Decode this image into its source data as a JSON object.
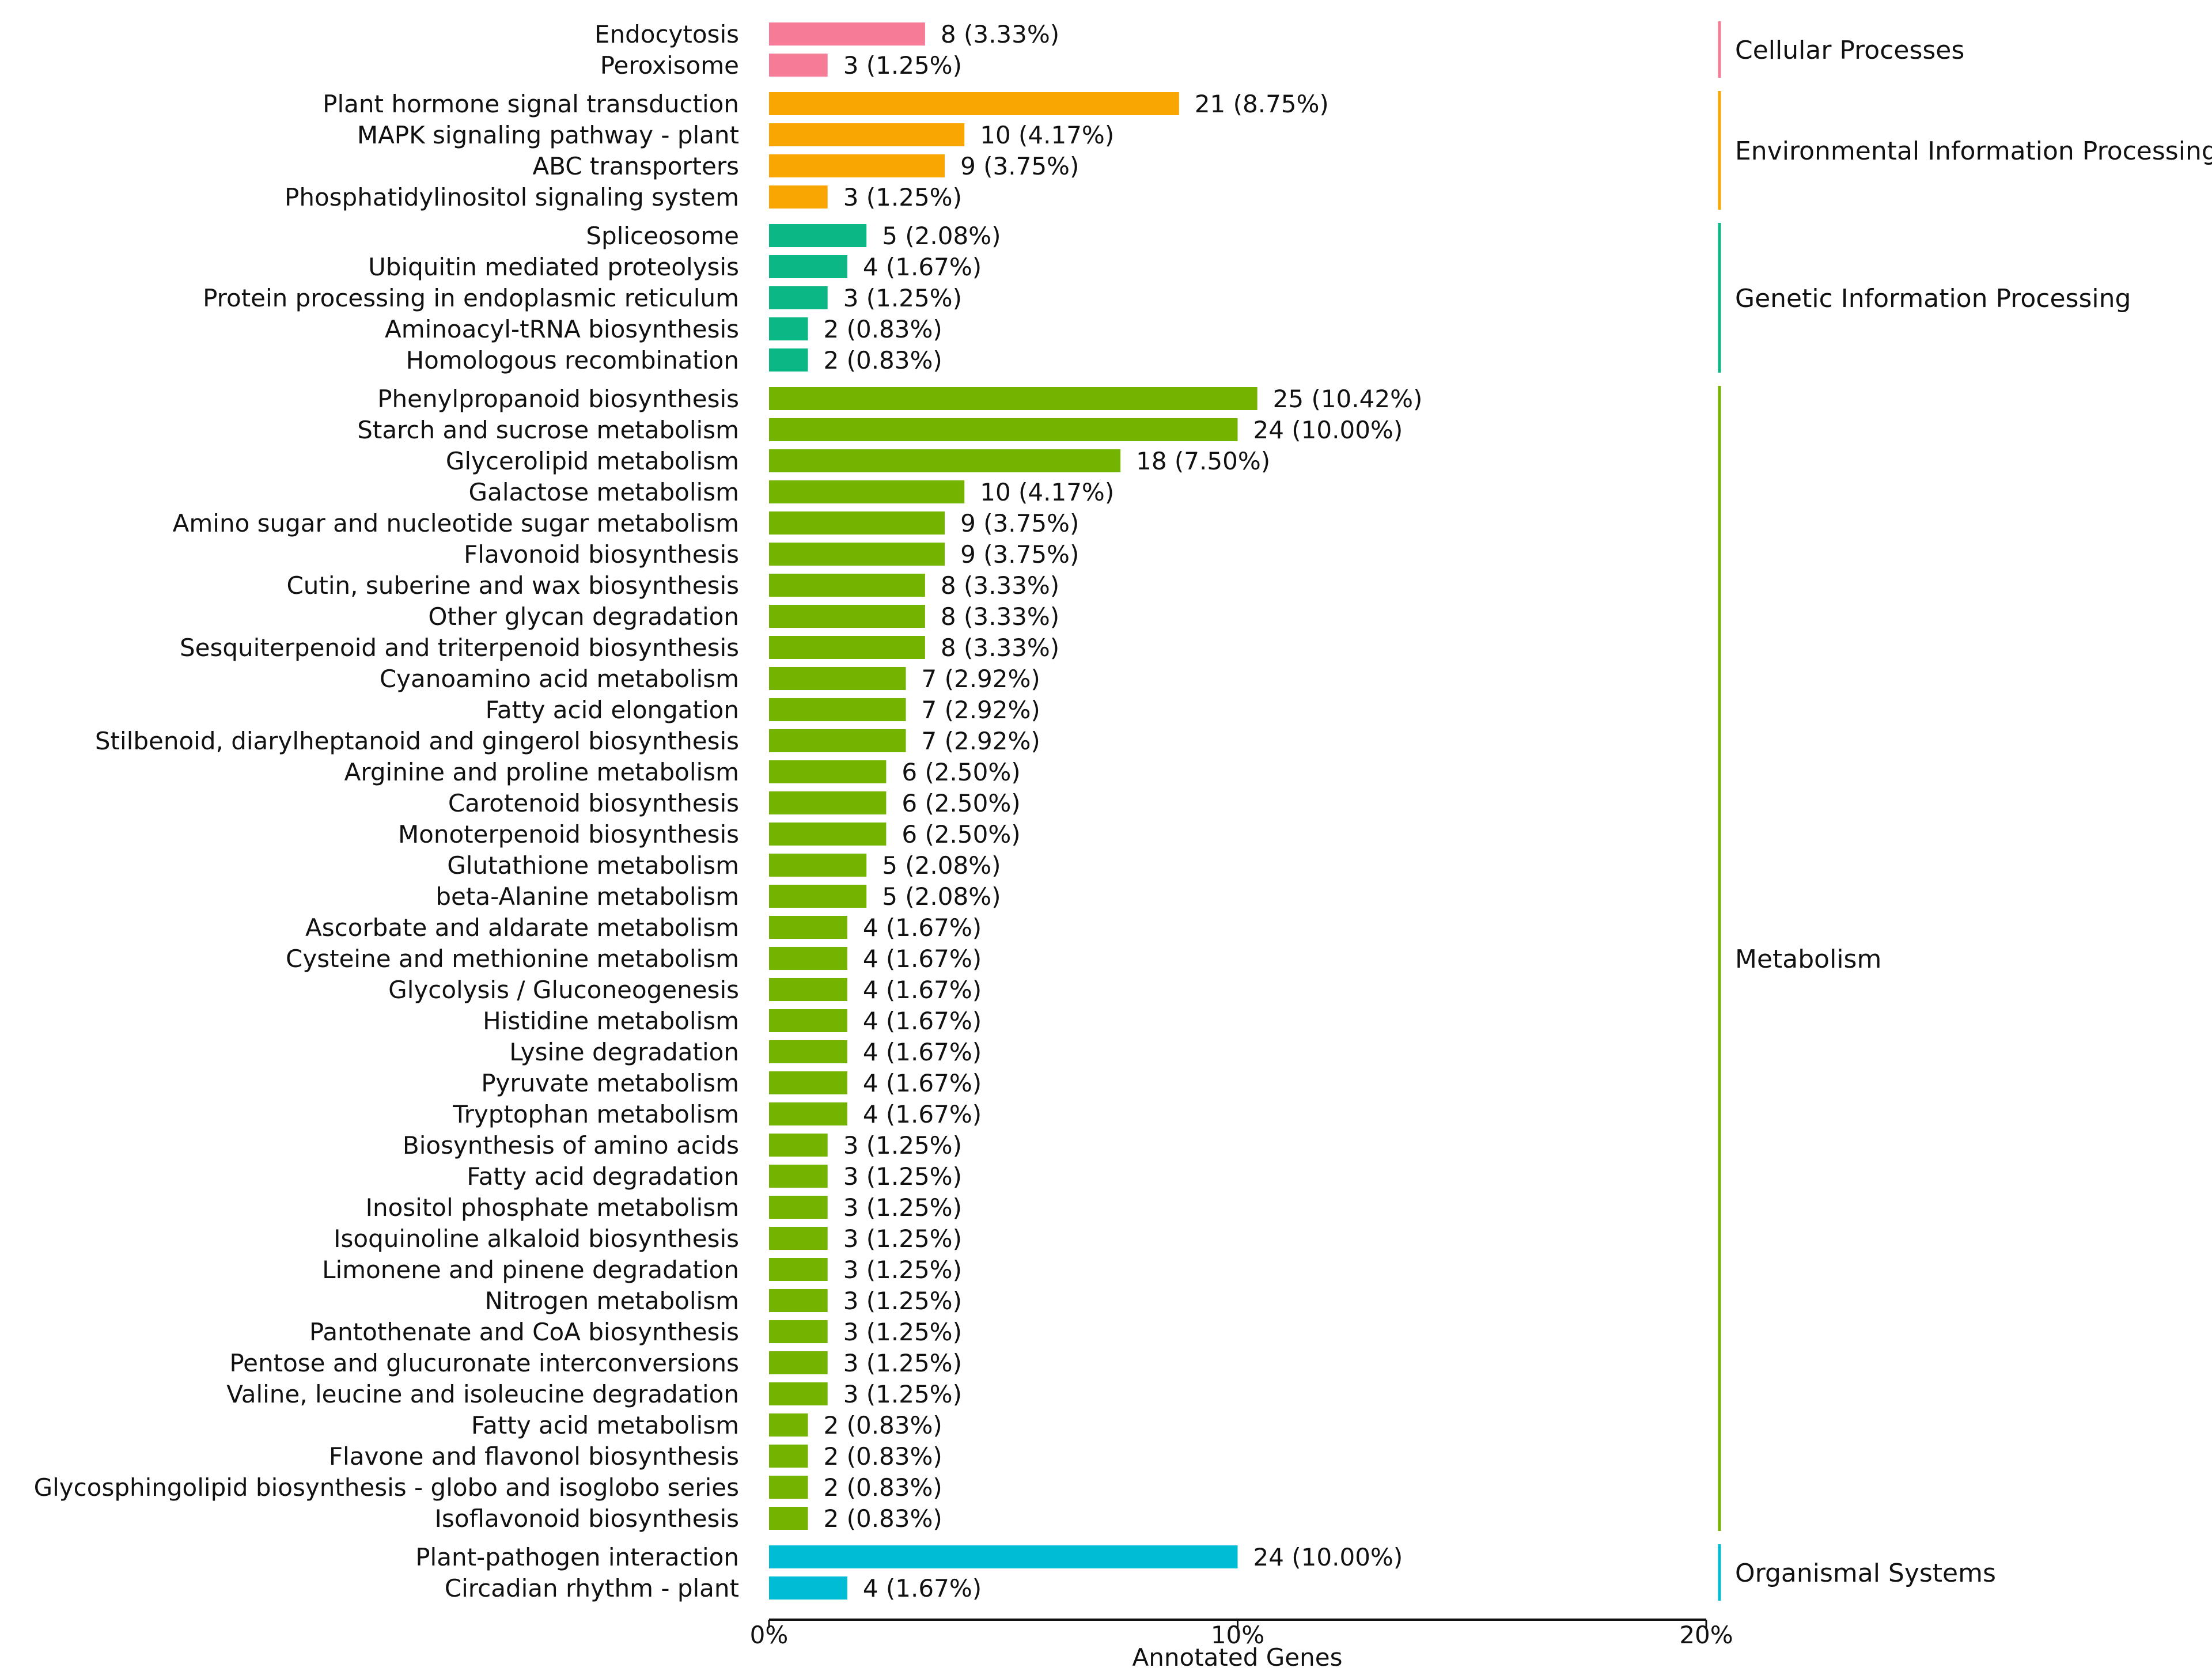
{
  "chart_data": {
    "type": "bar",
    "orientation": "horizontal",
    "title": "",
    "xlabel": "Annotated Genes",
    "ylabel": "",
    "xlim": [
      0,
      20
    ],
    "x_ticks": [
      "0%",
      "10%",
      "20%"
    ],
    "x_tick_values": [
      0,
      10,
      20
    ],
    "grid": false,
    "groups": [
      {
        "name": "Cellular Processes",
        "color": "#F57B97",
        "items": [
          {
            "category": "Endocytosis",
            "count": 8,
            "percent": 3.33,
            "label": "8 (3.33%)"
          },
          {
            "category": "Peroxisome",
            "count": 3,
            "percent": 1.25,
            "label": "3 (1.25%)"
          }
        ]
      },
      {
        "name": "Environmental Information Processing",
        "color": "#F9A602",
        "items": [
          {
            "category": "Plant hormone signal transduction",
            "count": 21,
            "percent": 8.75,
            "label": "21 (8.75%)"
          },
          {
            "category": "MAPK signaling pathway - plant",
            "count": 10,
            "percent": 4.17,
            "label": "10 (4.17%)"
          },
          {
            "category": "ABC transporters",
            "count": 9,
            "percent": 3.75,
            "label": "9 (3.75%)"
          },
          {
            "category": "Phosphatidylinositol signaling system",
            "count": 3,
            "percent": 1.25,
            "label": "3 (1.25%)"
          }
        ]
      },
      {
        "name": "Genetic Information Processing",
        "color": "#0BB784",
        "items": [
          {
            "category": "Spliceosome",
            "count": 5,
            "percent": 2.08,
            "label": "5 (2.08%)"
          },
          {
            "category": "Ubiquitin mediated proteolysis",
            "count": 4,
            "percent": 1.67,
            "label": "4 (1.67%)"
          },
          {
            "category": "Protein processing in endoplasmic reticulum",
            "count": 3,
            "percent": 1.25,
            "label": "3 (1.25%)"
          },
          {
            "category": "Aminoacyl-tRNA biosynthesis",
            "count": 2,
            "percent": 0.83,
            "label": "2 (0.83%)"
          },
          {
            "category": "Homologous recombination",
            "count": 2,
            "percent": 0.83,
            "label": "2 (0.83%)"
          }
        ]
      },
      {
        "name": "Metabolism",
        "color": "#74B300",
        "items": [
          {
            "category": "Phenylpropanoid biosynthesis",
            "count": 25,
            "percent": 10.42,
            "label": "25 (10.42%)"
          },
          {
            "category": "Starch and sucrose metabolism",
            "count": 24,
            "percent": 10.0,
            "label": "24 (10.00%)"
          },
          {
            "category": "Glycerolipid metabolism",
            "count": 18,
            "percent": 7.5,
            "label": "18 (7.50%)"
          },
          {
            "category": "Galactose metabolism",
            "count": 10,
            "percent": 4.17,
            "label": "10 (4.17%)"
          },
          {
            "category": "Amino sugar and nucleotide sugar metabolism",
            "count": 9,
            "percent": 3.75,
            "label": "9 (3.75%)"
          },
          {
            "category": "Flavonoid biosynthesis",
            "count": 9,
            "percent": 3.75,
            "label": "9 (3.75%)"
          },
          {
            "category": "Cutin, suberine and wax biosynthesis",
            "count": 8,
            "percent": 3.33,
            "label": "8 (3.33%)"
          },
          {
            "category": "Other glycan degradation",
            "count": 8,
            "percent": 3.33,
            "label": "8 (3.33%)"
          },
          {
            "category": "Sesquiterpenoid and triterpenoid biosynthesis",
            "count": 8,
            "percent": 3.33,
            "label": "8 (3.33%)"
          },
          {
            "category": "Cyanoamino acid metabolism",
            "count": 7,
            "percent": 2.92,
            "label": "7 (2.92%)"
          },
          {
            "category": "Fatty acid elongation",
            "count": 7,
            "percent": 2.92,
            "label": "7 (2.92%)"
          },
          {
            "category": "Stilbenoid, diarylheptanoid and gingerol biosynthesis",
            "count": 7,
            "percent": 2.92,
            "label": "7 (2.92%)"
          },
          {
            "category": "Arginine and proline metabolism",
            "count": 6,
            "percent": 2.5,
            "label": "6 (2.50%)"
          },
          {
            "category": "Carotenoid biosynthesis",
            "count": 6,
            "percent": 2.5,
            "label": "6 (2.50%)"
          },
          {
            "category": "Monoterpenoid biosynthesis",
            "count": 6,
            "percent": 2.5,
            "label": "6 (2.50%)"
          },
          {
            "category": "Glutathione metabolism",
            "count": 5,
            "percent": 2.08,
            "label": "5 (2.08%)"
          },
          {
            "category": "beta-Alanine metabolism",
            "count": 5,
            "percent": 2.08,
            "label": "5 (2.08%)"
          },
          {
            "category": "Ascorbate and aldarate metabolism",
            "count": 4,
            "percent": 1.67,
            "label": "4 (1.67%)"
          },
          {
            "category": "Cysteine and methionine metabolism",
            "count": 4,
            "percent": 1.67,
            "label": "4 (1.67%)"
          },
          {
            "category": "Glycolysis / Gluconeogenesis",
            "count": 4,
            "percent": 1.67,
            "label": "4 (1.67%)"
          },
          {
            "category": "Histidine metabolism",
            "count": 4,
            "percent": 1.67,
            "label": "4 (1.67%)"
          },
          {
            "category": "Lysine degradation",
            "count": 4,
            "percent": 1.67,
            "label": "4 (1.67%)"
          },
          {
            "category": "Pyruvate metabolism",
            "count": 4,
            "percent": 1.67,
            "label": "4 (1.67%)"
          },
          {
            "category": "Tryptophan metabolism",
            "count": 4,
            "percent": 1.67,
            "label": "4 (1.67%)"
          },
          {
            "category": "Biosynthesis of amino acids",
            "count": 3,
            "percent": 1.25,
            "label": "3 (1.25%)"
          },
          {
            "category": "Fatty acid degradation",
            "count": 3,
            "percent": 1.25,
            "label": "3 (1.25%)"
          },
          {
            "category": "Inositol phosphate metabolism",
            "count": 3,
            "percent": 1.25,
            "label": "3 (1.25%)"
          },
          {
            "category": "Isoquinoline alkaloid biosynthesis",
            "count": 3,
            "percent": 1.25,
            "label": "3 (1.25%)"
          },
          {
            "category": "Limonene and pinene degradation",
            "count": 3,
            "percent": 1.25,
            "label": "3 (1.25%)"
          },
          {
            "category": "Nitrogen metabolism",
            "count": 3,
            "percent": 1.25,
            "label": "3 (1.25%)"
          },
          {
            "category": "Pantothenate and CoA biosynthesis",
            "count": 3,
            "percent": 1.25,
            "label": "3 (1.25%)"
          },
          {
            "category": "Pentose and glucuronate interconversions",
            "count": 3,
            "percent": 1.25,
            "label": "3 (1.25%)"
          },
          {
            "category": "Valine, leucine and isoleucine degradation",
            "count": 3,
            "percent": 1.25,
            "label": "3 (1.25%)"
          },
          {
            "category": "Fatty acid metabolism",
            "count": 2,
            "percent": 0.83,
            "label": "2 (0.83%)"
          },
          {
            "category": "Flavone and flavonol biosynthesis",
            "count": 2,
            "percent": 0.83,
            "label": "2 (0.83%)"
          },
          {
            "category": "Glycosphingolipid biosynthesis - globo and isoglobo series",
            "count": 2,
            "percent": 0.83,
            "label": "2 (0.83%)"
          },
          {
            "category": "Isoflavonoid biosynthesis",
            "count": 2,
            "percent": 0.83,
            "label": "2 (0.83%)"
          }
        ]
      },
      {
        "name": "Organismal Systems",
        "color": "#00BCD4",
        "items": [
          {
            "category": "Plant-pathogen interaction",
            "count": 24,
            "percent": 10.0,
            "label": "24 (10.00%)"
          },
          {
            "category": "Circadian rhythm - plant",
            "count": 4,
            "percent": 1.67,
            "label": "4 (1.67%)"
          }
        ]
      }
    ]
  }
}
